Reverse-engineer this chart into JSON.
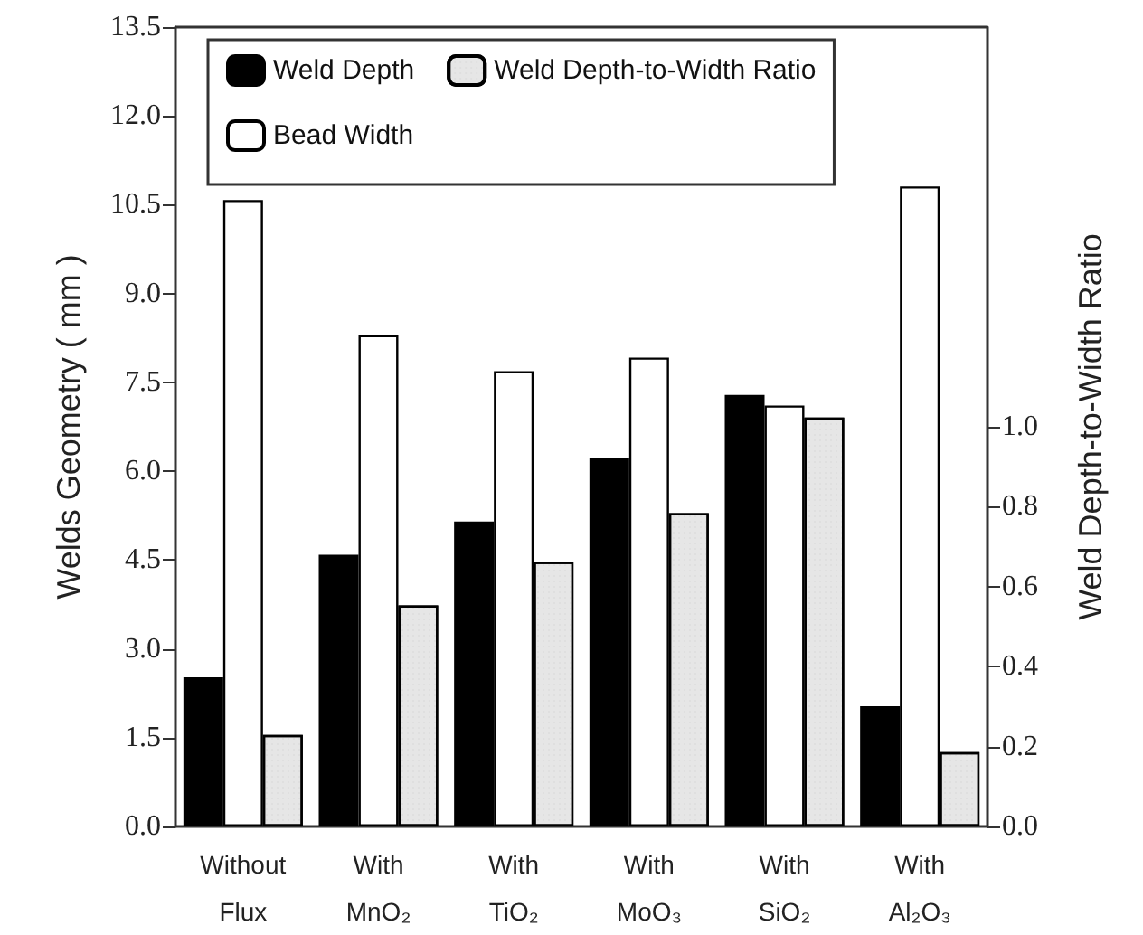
{
  "chart_data": {
    "type": "bar",
    "ylabel": "Welds Geometry ( mm )",
    "y2label": "Weld Depth-to-Width Ratio",
    "categories": [
      "Without\nFlux",
      "With\nMnO₂",
      "With\nTiO₂",
      "With\nMoO₃",
      "With\nSiO₂",
      "With\nAl₂O₃"
    ],
    "series": [
      {
        "name": "Weld Depth",
        "color": "#000000",
        "values": [
          2.52,
          4.59,
          5.15,
          6.22,
          7.29,
          2.03
        ]
      },
      {
        "name": "Bead Width",
        "color": "#ffffff",
        "values": [
          10.58,
          8.3,
          7.69,
          7.92,
          7.11,
          10.81
        ]
      },
      {
        "name": "Weld Depth-to-Width Ratio",
        "color": "#e6e6e6",
        "axis": "y2",
        "values": [
          0.229,
          0.553,
          0.662,
          0.784,
          1.023,
          0.186
        ]
      }
    ],
    "ylim": [
      0,
      13.5
    ],
    "yticks": [
      {
        "value": 0,
        "label": "0.0"
      },
      {
        "value": 1.5,
        "label": "1.5"
      },
      {
        "value": 3,
        "label": "3.0"
      },
      {
        "value": 4.5,
        "label": "4.5"
      },
      {
        "value": 6,
        "label": "6.0"
      },
      {
        "value": 7.5,
        "label": "7.5"
      },
      {
        "value": 9,
        "label": "9.0"
      },
      {
        "value": 10.5,
        "label": "10.5"
      },
      {
        "value": 12,
        "label": "12.0"
      },
      {
        "value": 13.5,
        "label": "13.5"
      }
    ],
    "y2lim": [
      0,
      2.0
    ],
    "y2ticks": [
      {
        "value": 0,
        "label": "0.0"
      },
      {
        "value": 0.2,
        "label": "0.2"
      },
      {
        "value": 0.4,
        "label": "0.4"
      },
      {
        "value": 0.6,
        "label": "0.6"
      },
      {
        "value": 0.8,
        "label": "0.8"
      },
      {
        "value": 1.0,
        "label": "1.0"
      }
    ],
    "legend": "top",
    "grid": false
  }
}
